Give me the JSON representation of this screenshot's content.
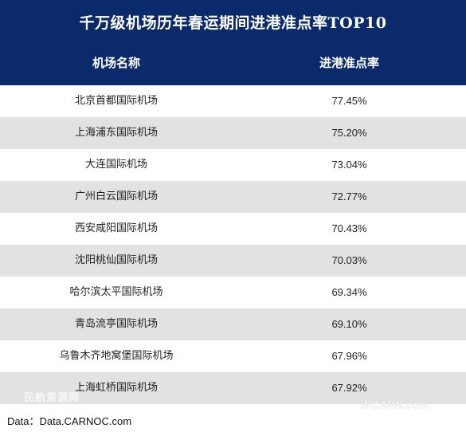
{
  "title": "千万级机场历年春运期间进港准点率TOP10",
  "columns": {
    "name": "机场名称",
    "rate": "进港准点率"
  },
  "rows": [
    {
      "name": "北京首都国际机场",
      "rate": "77.45%"
    },
    {
      "name": "上海浦东国际机场",
      "rate": "75.20%"
    },
    {
      "name": "大连国际机场",
      "rate": "73.04%"
    },
    {
      "name": "广州白云国际机场",
      "rate": "72.77%"
    },
    {
      "name": "西安咸阳国际机场",
      "rate": "70.43%"
    },
    {
      "name": "沈阳桃仙国际机场",
      "rate": "70.03%"
    },
    {
      "name": "哈尔滨太平国际机场",
      "rate": "69.34%"
    },
    {
      "name": "青岛流亭国际机场",
      "rate": "69.10%"
    },
    {
      "name": "乌鲁木齐地窝堡国际机场",
      "rate": "67.96%"
    },
    {
      "name": "上海虹桥国际机场",
      "rate": "67.92%"
    }
  ],
  "source": "Data：Data.CARNOC.com",
  "watermarks": {
    "left": "民航资源网",
    "right": "WCARN.com"
  },
  "colors": {
    "header_bg": "#0b2a6b",
    "alt_row_bg": "#e2e2e2"
  }
}
